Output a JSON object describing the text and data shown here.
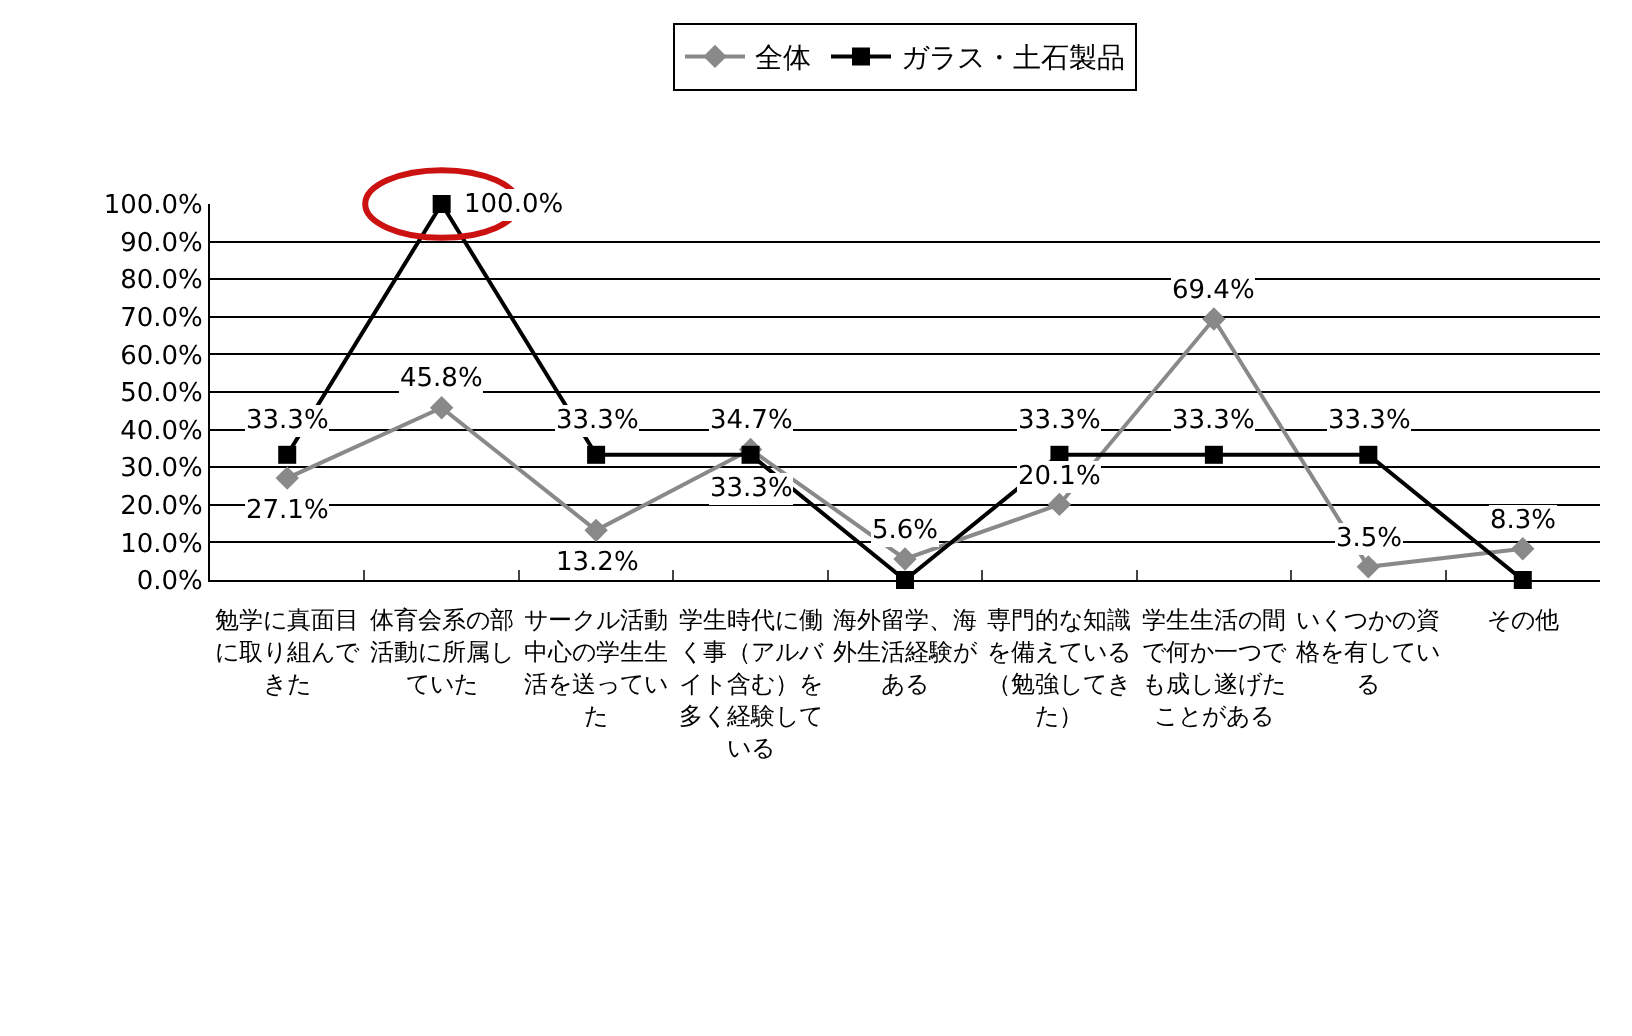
{
  "chart_data": {
    "type": "line",
    "categories": [
      "勉学に真面目に取り組んできた",
      "体育会系の部活動に所属していた",
      "サークル活動中心の学生生活を送っていた",
      "学生時代に働く事（アルバイト含む）を多く経験している",
      "海外留学、海外生活経験がある",
      "専門的な知識を備えている（勉強してきた）",
      "学生生活の間で何か一つでも成し遂げたことがある",
      "いくつかの資格を有している",
      "その他"
    ],
    "series": [
      {
        "name": "全体",
        "color": "#898989",
        "marker": "diamond",
        "values": [
          27.1,
          45.8,
          13.2,
          34.7,
          5.6,
          20.1,
          69.4,
          3.5,
          8.3
        ],
        "value_labels": [
          "27.1%",
          "45.8%",
          "13.2%",
          "34.7%",
          "5.6%",
          "20.1%",
          "69.4%",
          "3.5%",
          "8.3%"
        ]
      },
      {
        "name": "ガラス・土石製品",
        "color": "#000000",
        "marker": "square",
        "values": [
          33.3,
          100,
          33.3,
          33.3,
          0,
          33.3,
          33.3,
          33.3,
          0
        ],
        "value_labels": [
          "33.3%",
          "100.0%",
          "33.3%",
          "33.3%",
          null,
          "33.3%",
          "33.3%",
          "33.3%",
          null
        ]
      }
    ],
    "ylim": [
      0,
      100
    ],
    "yticks": [
      {
        "value": 0,
        "label": "0.0%"
      },
      {
        "value": 10,
        "label": "10.0%"
      },
      {
        "value": 20,
        "label": "20.0%"
      },
      {
        "value": 30,
        "label": "30.0%"
      },
      {
        "value": 40,
        "label": "40.0%"
      },
      {
        "value": 50,
        "label": "50.0%"
      },
      {
        "value": 60,
        "label": "60.0%"
      },
      {
        "value": 70,
        "label": "70.0%"
      },
      {
        "value": 80,
        "label": "80.0%"
      },
      {
        "value": 90,
        "label": "90.0%"
      },
      {
        "value": 100,
        "label": "100.0%"
      }
    ],
    "grid": "y",
    "legend": "top",
    "line_style": "solid"
  }
}
